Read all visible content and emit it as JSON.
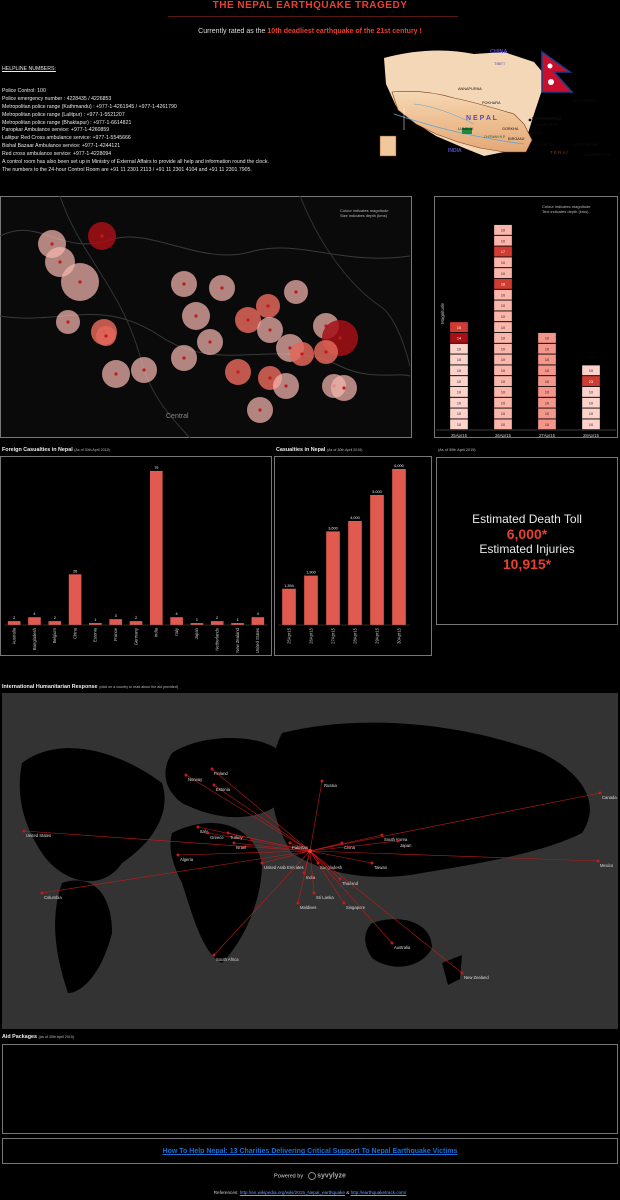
{
  "header": {
    "title": "THE NEPAL EARTHQUAKE TRAGEDY",
    "subtitle_pre": "Currently rated as the ",
    "subtitle_highlight": "10th deadliest earthquake of the 21st century !"
  },
  "helpline": {
    "heading": "HELPLINE NUMBERS:",
    "lines": [
      "Police Control: 100",
      "Police emergency number : 4228435 / 4226853",
      "Metropolitan police range (Kathmandu) : +977-1-4261945 / +977-1-4261790",
      "Metropolitan police range (Lalitpur) : +977-1-5521207",
      "Metropolitan police range (Bhaktapur) : +977-1-6614821",
      "Paropkar Ambulance service: +977-1-4260859",
      "Lalitpur Red Cross ambulance service: +977-1-5545666",
      "Bishal Bazaar Ambulance service: +977-1-4244121",
      "Red cross ambulance service: +977-1-4228094",
      "A control room has also been set up in Ministry of External Affairs to provide all help and information round the clock.",
      "The numbers to the 24-hour Control Room are +91 11 2301 2113 / +91 11 2301 4104 and +91 11 2301 7905."
    ]
  },
  "nepal_map": {
    "labels": {
      "china": "CHINA",
      "tibet": "TIBET",
      "nepal": "N E P A L",
      "india": "INDIA",
      "terai": "T E R A I",
      "kathmandu": "KATHMANDU",
      "pokhara": "POKHARA",
      "annapurna": "ANNAPURNA",
      "everest": "MT. EVEREST",
      "bhaktapur": "BHAKTAPUR",
      "patan": "PATAN",
      "janakpur": "JANAKPUR",
      "biratnagar": "BIRATNAGAR",
      "birganj": "BIRGANJ",
      "lumbini": "LUMBINI",
      "chitwan": "CHITWAN N.P.",
      "gorkha": "GORKHA",
      "kakarbhitta": "KAKARBHITTA"
    }
  },
  "quake_map": {
    "note_line1": "Colour indicates magnitude",
    "note_line2": "Size indicates depth (kms)",
    "region_label": "Central",
    "colors": {
      "low": "#f4b6ae",
      "mid": "#e0665a",
      "high": "#a50f15"
    }
  },
  "magnitude_chart": {
    "note_line1": "Colour indicates magnitude",
    "note_line2": "Text indicates depth (kms)",
    "ylabel": "Magnitude",
    "days": [
      {
        "label": "25Apr15",
        "depths": [
          "10",
          "10",
          "10",
          "10",
          "10",
          "10",
          "10",
          "10",
          "14",
          "15"
        ]
      },
      {
        "label": "26Apr15",
        "depths": [
          "10",
          "10",
          "10",
          "10",
          "10",
          "10",
          "10",
          "10",
          "10",
          "10",
          "10",
          "10",
          "10",
          "18",
          "10",
          "10",
          "17",
          "10",
          "10"
        ]
      },
      {
        "label": "27Apr15",
        "depths": [
          "10",
          "10",
          "10",
          "10",
          "10",
          "10",
          "10",
          "10",
          "10"
        ]
      },
      {
        "label": "28Apr15",
        "depths": [
          "10",
          "10",
          "10",
          "10",
          "23",
          "10"
        ]
      }
    ]
  },
  "chart_data": [
    {
      "type": "bar",
      "title": "Foreign Casualties in Nepal",
      "note": "(As of 30th April 2015)",
      "categories": [
        "Australia",
        "Bangladesh",
        "Belgium",
        "China",
        "Estonia",
        "France",
        "Germany",
        "India",
        "Italy",
        "Japan",
        "Netherlands",
        "New Zealand",
        "United States"
      ],
      "values": [
        2,
        4,
        2,
        26,
        1,
        3,
        2,
        79,
        4,
        1,
        2,
        1,
        4
      ],
      "color": "#e05a50"
    },
    {
      "type": "bar",
      "title": "Casualties in Nepal",
      "note": "(As of 30th April 2015)",
      "categories": [
        "25Apr15",
        "26Apr15",
        "27Apr15",
        "28Apr15",
        "29Apr15",
        "30Apr15"
      ],
      "values": [
        1394,
        1900,
        3600,
        4000,
        5000,
        6000
      ],
      "labels": [
        "1,394",
        "1,900",
        "3,600",
        "4,000",
        "5,000",
        "6,000"
      ],
      "color": "#e05a50"
    }
  ],
  "toll": {
    "note": "(As of 30th April 2015)",
    "death_label": "Estimated Death Toll",
    "death_value": "6,000*",
    "injury_label": "Estimated Injuries",
    "injury_value": "10,915*"
  },
  "world_map": {
    "title": "International Humanitarian Response",
    "note": "(click on a country to read about the aid provided)",
    "countries": [
      "Norway",
      "Finland",
      "Estonia",
      "Russia",
      "Canada",
      "United States",
      "Italy",
      "Greece",
      "Turkey",
      "Israel",
      "Algeria",
      "United Arab Emirates",
      "Pakistan",
      "Bangladesh",
      "China",
      "South Korea",
      "Japan",
      "Taiwan",
      "Mexico",
      "Columbia",
      "India",
      "Sri Lanka",
      "Thailand",
      "Maldives",
      "Singapore",
      "Australia",
      "South Africa",
      "New Zealand"
    ]
  },
  "aid": {
    "title": "Aid Packages",
    "note": "(As of 30th April 2015)"
  },
  "footer": {
    "link_text": "How To Help Nepal: 13 Charities Delivering Critical Support To Nepal Earthquake Victims",
    "powered_by": "Powered by",
    "brand": "syvylyze",
    "refs_label": "References:",
    "ref1": "http://en.wikipedia.org/wiki/2015_Nepal_earthquake",
    "ref_amp": "&",
    "ref2": "http://earthquaketrack.com/"
  }
}
